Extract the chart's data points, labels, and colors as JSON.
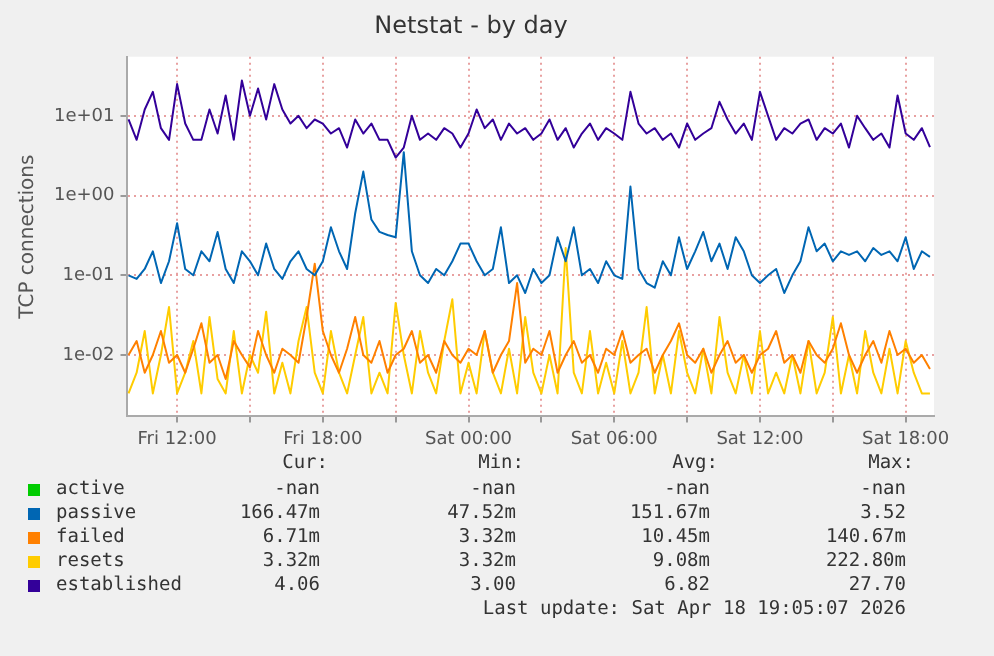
{
  "chart_data": {
    "type": "line",
    "title": "Netstat - by day",
    "ylabel": "TCP connections",
    "log": "y",
    "grid": true,
    "legend": "bottom",
    "marker": "none",
    "line_style": "solid",
    "ylim": [
      0.0017,
      55
    ],
    "yticks": [
      {
        "value": 0.01,
        "label": "1e-02"
      },
      {
        "value": 0.1,
        "label": "1e-01"
      },
      {
        "value": 1,
        "label": "1e+00"
      },
      {
        "value": 10,
        "label": "1e+01"
      }
    ],
    "xlim": [
      "2026-04-17T09:55",
      "2026-04-18T19:10"
    ],
    "xticks": [
      {
        "value": "2026-04-17T12:00",
        "label": "Fri 12:00"
      },
      {
        "value": "2026-04-17T15:00",
        "label": null
      },
      {
        "value": "2026-04-17T18:00",
        "label": "Fri 18:00"
      },
      {
        "value": "2026-04-17T21:00",
        "label": null
      },
      {
        "value": "2026-04-18T00:00",
        "label": "Sat 00:00"
      },
      {
        "value": "2026-04-18T03:00",
        "label": null
      },
      {
        "value": "2026-04-18T06:00",
        "label": "Sat 06:00"
      },
      {
        "value": "2026-04-18T09:00",
        "label": null
      },
      {
        "value": "2026-04-18T12:00",
        "label": "Sat 12:00"
      },
      {
        "value": "2026-04-18T15:00",
        "label": null
      },
      {
        "value": "2026-04-18T18:00",
        "label": "Sat 18:00"
      }
    ],
    "x": [
      "2026-04-17T10:00",
      "2026-04-17T10:20",
      "2026-04-17T10:40",
      "2026-04-17T11:00",
      "2026-04-17T11:20",
      "2026-04-17T11:40",
      "2026-04-17T12:00",
      "2026-04-17T12:20",
      "2026-04-17T12:40",
      "2026-04-17T13:00",
      "2026-04-17T13:20",
      "2026-04-17T13:40",
      "2026-04-17T14:00",
      "2026-04-17T14:20",
      "2026-04-17T14:40",
      "2026-04-17T15:00",
      "2026-04-17T15:20",
      "2026-04-17T15:40",
      "2026-04-17T16:00",
      "2026-04-17T16:20",
      "2026-04-17T16:40",
      "2026-04-17T17:00",
      "2026-04-17T17:20",
      "2026-04-17T17:40",
      "2026-04-17T18:00",
      "2026-04-17T18:20",
      "2026-04-17T18:40",
      "2026-04-17T19:00",
      "2026-04-17T19:20",
      "2026-04-17T19:40",
      "2026-04-17T20:00",
      "2026-04-17T20:20",
      "2026-04-17T20:40",
      "2026-04-17T21:00",
      "2026-04-17T21:20",
      "2026-04-17T21:40",
      "2026-04-17T22:00",
      "2026-04-17T22:20",
      "2026-04-17T22:40",
      "2026-04-17T23:00",
      "2026-04-17T23:20",
      "2026-04-17T23:40",
      "2026-04-18T00:00",
      "2026-04-18T00:20",
      "2026-04-18T00:40",
      "2026-04-18T01:00",
      "2026-04-18T01:20",
      "2026-04-18T01:40",
      "2026-04-18T02:00",
      "2026-04-18T02:20",
      "2026-04-18T02:40",
      "2026-04-18T03:00",
      "2026-04-18T03:20",
      "2026-04-18T03:40",
      "2026-04-18T04:00",
      "2026-04-18T04:20",
      "2026-04-18T04:40",
      "2026-04-18T05:00",
      "2026-04-18T05:20",
      "2026-04-18T05:40",
      "2026-04-18T06:00",
      "2026-04-18T06:20",
      "2026-04-18T06:40",
      "2026-04-18T07:00",
      "2026-04-18T07:20",
      "2026-04-18T07:40",
      "2026-04-18T08:00",
      "2026-04-18T08:20",
      "2026-04-18T08:40",
      "2026-04-18T09:00",
      "2026-04-18T09:20",
      "2026-04-18T09:40",
      "2026-04-18T10:00",
      "2026-04-18T10:20",
      "2026-04-18T10:40",
      "2026-04-18T11:00",
      "2026-04-18T11:20",
      "2026-04-18T11:40",
      "2026-04-18T12:00",
      "2026-04-18T12:20",
      "2026-04-18T12:40",
      "2026-04-18T13:00",
      "2026-04-18T13:20",
      "2026-04-18T13:40",
      "2026-04-18T14:00",
      "2026-04-18T14:20",
      "2026-04-18T14:40",
      "2026-04-18T15:00",
      "2026-04-18T15:20",
      "2026-04-18T15:40",
      "2026-04-18T16:00",
      "2026-04-18T16:20",
      "2026-04-18T16:40",
      "2026-04-18T17:00",
      "2026-04-18T17:20",
      "2026-04-18T17:40",
      "2026-04-18T18:00",
      "2026-04-18T18:20",
      "2026-04-18T18:40",
      "2026-04-18T19:00"
    ],
    "series": [
      {
        "name": "active",
        "color": "#00cc00",
        "values": [
          null,
          null,
          null,
          null,
          null,
          null,
          null,
          null,
          null,
          null,
          null,
          null,
          null,
          null,
          null,
          null,
          null,
          null,
          null,
          null,
          null,
          null,
          null,
          null,
          null,
          null,
          null,
          null,
          null,
          null,
          null,
          null,
          null,
          null,
          null,
          null,
          null,
          null,
          null,
          null,
          null,
          null,
          null,
          null,
          null,
          null,
          null,
          null,
          null,
          null,
          null,
          null,
          null,
          null,
          null,
          null,
          null,
          null,
          null,
          null,
          null,
          null,
          null,
          null,
          null,
          null,
          null,
          null,
          null,
          null,
          null,
          null,
          null,
          null,
          null,
          null,
          null,
          null,
          null,
          null,
          null,
          null,
          null,
          null,
          null,
          null,
          null,
          null,
          null,
          null,
          null,
          null,
          null,
          null,
          null,
          null,
          null,
          null,
          null,
          null
        ]
      },
      {
        "name": "passive",
        "color": "#0066b3",
        "values": [
          0.1,
          0.09,
          0.12,
          0.2,
          0.08,
          0.15,
          0.45,
          0.12,
          0.1,
          0.2,
          0.15,
          0.35,
          0.12,
          0.08,
          0.2,
          0.15,
          0.1,
          0.25,
          0.12,
          0.09,
          0.15,
          0.2,
          0.12,
          0.1,
          0.15,
          0.4,
          0.2,
          0.12,
          0.6,
          2.0,
          0.5,
          0.35,
          0.32,
          0.3,
          3.5,
          0.2,
          0.1,
          0.08,
          0.12,
          0.1,
          0.15,
          0.25,
          0.25,
          0.15,
          0.1,
          0.12,
          0.4,
          0.08,
          0.1,
          0.06,
          0.12,
          0.08,
          0.1,
          0.3,
          0.15,
          0.4,
          0.1,
          0.12,
          0.08,
          0.15,
          0.1,
          0.09,
          1.3,
          0.12,
          0.08,
          0.07,
          0.15,
          0.1,
          0.3,
          0.12,
          0.2,
          0.35,
          0.15,
          0.25,
          0.12,
          0.3,
          0.2,
          0.1,
          0.08,
          0.1,
          0.12,
          0.06,
          0.1,
          0.15,
          0.4,
          0.2,
          0.25,
          0.15,
          0.2,
          0.18,
          0.2,
          0.15,
          0.22,
          0.18,
          0.2,
          0.15,
          0.3,
          0.12,
          0.2,
          0.17
        ]
      },
      {
        "name": "failed",
        "color": "#ff8000",
        "values": [
          0.01,
          0.015,
          0.006,
          0.01,
          0.02,
          0.008,
          0.01,
          0.006,
          0.012,
          0.025,
          0.008,
          0.01,
          0.005,
          0.015,
          0.01,
          0.007,
          0.02,
          0.01,
          0.006,
          0.012,
          0.01,
          0.008,
          0.03,
          0.14,
          0.02,
          0.01,
          0.006,
          0.012,
          0.03,
          0.01,
          0.008,
          0.015,
          0.006,
          0.01,
          0.012,
          0.02,
          0.008,
          0.01,
          0.006,
          0.015,
          0.01,
          0.008,
          0.012,
          0.01,
          0.02,
          0.006,
          0.01,
          0.015,
          0.08,
          0.008,
          0.012,
          0.01,
          0.02,
          0.006,
          0.01,
          0.015,
          0.008,
          0.01,
          0.006,
          0.012,
          0.01,
          0.02,
          0.008,
          0.01,
          0.012,
          0.006,
          0.01,
          0.015,
          0.025,
          0.01,
          0.008,
          0.012,
          0.006,
          0.01,
          0.015,
          0.008,
          0.01,
          0.006,
          0.01,
          0.012,
          0.02,
          0.008,
          0.01,
          0.006,
          0.015,
          0.01,
          0.008,
          0.012,
          0.025,
          0.01,
          0.006,
          0.01,
          0.015,
          0.008,
          0.02,
          0.01,
          0.012,
          0.008,
          0.01,
          0.0067
        ]
      },
      {
        "name": "resets",
        "color": "#ffcc00",
        "values": [
          0.0033,
          0.006,
          0.02,
          0.0033,
          0.01,
          0.04,
          0.0033,
          0.006,
          0.015,
          0.0033,
          0.03,
          0.005,
          0.0033,
          0.02,
          0.0033,
          0.01,
          0.006,
          0.035,
          0.0033,
          0.008,
          0.0033,
          0.015,
          0.04,
          0.006,
          0.0033,
          0.02,
          0.006,
          0.0033,
          0.01,
          0.03,
          0.0033,
          0.006,
          0.0033,
          0.045,
          0.01,
          0.0033,
          0.02,
          0.006,
          0.0033,
          0.015,
          0.05,
          0.0033,
          0.008,
          0.0033,
          0.02,
          0.006,
          0.0033,
          0.012,
          0.0033,
          0.03,
          0.006,
          0.0033,
          0.01,
          0.0033,
          0.22,
          0.006,
          0.0033,
          0.02,
          0.0033,
          0.008,
          0.0033,
          0.015,
          0.0033,
          0.006,
          0.04,
          0.0033,
          0.01,
          0.0033,
          0.02,
          0.006,
          0.0033,
          0.012,
          0.0033,
          0.03,
          0.006,
          0.0033,
          0.01,
          0.0033,
          0.02,
          0.0033,
          0.006,
          0.0033,
          0.01,
          0.0033,
          0.015,
          0.0033,
          0.006,
          0.03,
          0.0033,
          0.01,
          0.0033,
          0.02,
          0.006,
          0.0033,
          0.012,
          0.0033,
          0.015,
          0.006,
          0.0033,
          0.0033
        ]
      },
      {
        "name": "established",
        "color": "#330099",
        "values": [
          9,
          5,
          12,
          20,
          7,
          5,
          25,
          8,
          5,
          5,
          12,
          6,
          18,
          5,
          27.7,
          10,
          22,
          9,
          25,
          12,
          8,
          10,
          7,
          9,
          8,
          6,
          7,
          4,
          9,
          6,
          8,
          5,
          5,
          3,
          4,
          10,
          5,
          6,
          5,
          7,
          6,
          4,
          6,
          12,
          7,
          9,
          5,
          8,
          6,
          7,
          5,
          6,
          9,
          5,
          7,
          4,
          6,
          8,
          5,
          7,
          6,
          5,
          20,
          8,
          6,
          7,
          5,
          6,
          4,
          8,
          5,
          6,
          7,
          15,
          9,
          6,
          8,
          5,
          20,
          10,
          5,
          7,
          6,
          8,
          9,
          5,
          7,
          6,
          8,
          4,
          10,
          7,
          5,
          6,
          4,
          18,
          6,
          5,
          7,
          4.06
        ]
      }
    ],
    "annotations": [
      "Cur:",
      "Min:",
      "Avg:",
      "Max:",
      "-nan",
      "-nan",
      "-nan",
      "-nan",
      "166.47m",
      "47.52m",
      "151.67m",
      "3.52",
      "6.71m",
      "3.32m",
      "10.45m",
      "140.67m",
      "3.32m",
      "3.32m",
      "9.08m",
      "222.80m",
      "4.06",
      "3.00",
      "6.82",
      "27.70",
      "Last update: Sat Apr 18 19:05:07 2026"
    ]
  }
}
